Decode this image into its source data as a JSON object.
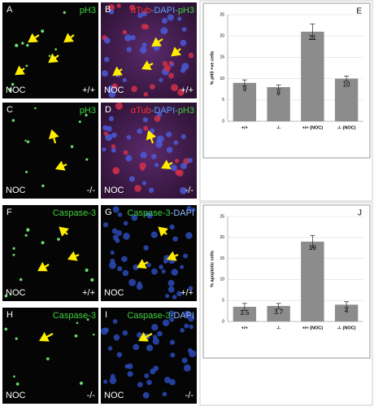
{
  "panels": [
    {
      "letter": "A",
      "label_parts": [
        {
          "text": "pH3",
          "color": "#3fd23f"
        }
      ],
      "condition": "NOC",
      "genotype": "+/+",
      "stain": "green"
    },
    {
      "letter": "B",
      "label_parts": [
        {
          "text": "αTub",
          "color": "#ff3030"
        },
        {
          "text": "-DAPI-",
          "color": "#5aa0ff"
        },
        {
          "text": "pH3",
          "color": "#3fd23f"
        }
      ],
      "condition": "NOC",
      "genotype": "+/+",
      "stain": "tub"
    },
    {
      "letter": "C",
      "label_parts": [
        {
          "text": "pH3",
          "color": "#3fd23f"
        }
      ],
      "condition": "NOC",
      "genotype": "-/-",
      "stain": "green"
    },
    {
      "letter": "D",
      "label_parts": [
        {
          "text": "αTub",
          "color": "#ff3030"
        },
        {
          "text": "-DAPI-",
          "color": "#5aa0ff"
        },
        {
          "text": "pH3",
          "color": "#3fd23f"
        }
      ],
      "condition": "NOC",
      "genotype": "-/-",
      "stain": "tub"
    },
    {
      "letter": "F",
      "label_parts": [
        {
          "text": "Caspase-3",
          "color": "#3fd23f"
        }
      ],
      "condition": "NOC",
      "genotype": "+/+",
      "stain": "green"
    },
    {
      "letter": "G",
      "label_parts": [
        {
          "text": "Caspase-3",
          "color": "#3fd23f"
        },
        {
          "text": "-DAPI",
          "color": "#8fb8ff"
        }
      ],
      "condition": "NOC",
      "genotype": "+/+",
      "stain": "dapi"
    },
    {
      "letter": "H",
      "label_parts": [
        {
          "text": "Caspase-3",
          "color": "#3fd23f"
        }
      ],
      "condition": "NOC",
      "genotype": "-/-",
      "stain": "green"
    },
    {
      "letter": "I",
      "label_parts": [
        {
          "text": "Caspase-3",
          "color": "#3fd23f"
        },
        {
          "text": "-DAPI",
          "color": "#8fb8ff"
        }
      ],
      "condition": "NOC",
      "genotype": "-/-",
      "stain": "dapi"
    }
  ],
  "chart_data": [
    {
      "type": "bar",
      "letter": "E",
      "ylabel": "% pH3 +ve cells",
      "categories": [
        "+/+",
        "-/-",
        "+/+ (NOC)",
        "-/- (NOC)"
      ],
      "values": [
        9,
        8,
        21,
        10
      ],
      "errors": [
        0.7,
        0.5,
        1.8,
        0.6
      ],
      "color": "#8c8c8c",
      "ylim": [
        0,
        25
      ],
      "yticks": [
        0,
        5,
        10,
        15,
        20,
        25
      ],
      "grid": true
    },
    {
      "type": "bar",
      "letter": "J",
      "ylabel": "% apoptotic cells",
      "categories": [
        "+/+",
        "-/-",
        "+/+ (NOC)",
        "-/- (NOC)"
      ],
      "values": [
        3.5,
        3.7,
        19,
        4
      ],
      "errors": [
        0.8,
        0.6,
        1.5,
        0.7
      ],
      "color": "#8c8c8c",
      "ylim": [
        0,
        25
      ],
      "yticks": [
        0,
        5,
        10,
        15,
        20,
        25
      ],
      "grid": true
    }
  ]
}
